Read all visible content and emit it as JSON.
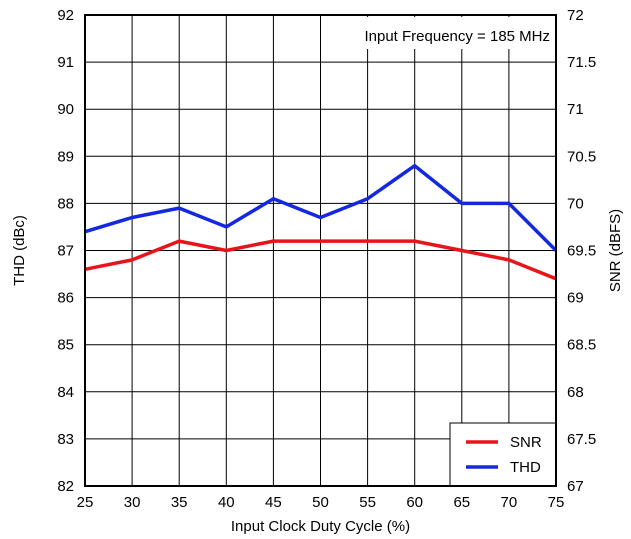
{
  "chart_data": {
    "type": "line",
    "title": "",
    "annotation": "Input Frequency = 185 MHz",
    "xlabel": "Input Clock Duty Cycle  (%)",
    "ylabel_left": "THD (dBc)",
    "ylabel_right": "SNR (dBFS)",
    "xlim": [
      25,
      75
    ],
    "xticks": [
      25,
      30,
      35,
      40,
      45,
      50,
      55,
      60,
      65,
      70,
      75
    ],
    "ylim_left": [
      82,
      92
    ],
    "yticks_left": [
      82,
      83,
      84,
      85,
      86,
      87,
      88,
      89,
      90,
      91,
      92
    ],
    "ylim_right": [
      67,
      72
    ],
    "yticks_right": [
      "67",
      "67.5",
      "68",
      "68.5",
      "69",
      "69.5",
      "70",
      "70.5",
      "71",
      "71.5",
      "72"
    ],
    "grid": true,
    "legend_position": "bottom-right",
    "x": [
      25,
      30,
      35,
      40,
      45,
      50,
      55,
      60,
      65,
      70,
      75
    ],
    "series": [
      {
        "name": "SNR",
        "axis": "right",
        "color": "#e8141b",
        "values": [
          69.3,
          69.4,
          69.6,
          69.5,
          69.6,
          69.6,
          69.6,
          69.6,
          69.5,
          69.4,
          69.2
        ]
      },
      {
        "name": "THD",
        "axis": "left",
        "color": "#1428e0",
        "values": [
          87.4,
          87.7,
          87.9,
          87.5,
          88.1,
          87.7,
          88.1,
          88.8,
          88.0,
          88.0,
          87.0
        ]
      }
    ]
  }
}
